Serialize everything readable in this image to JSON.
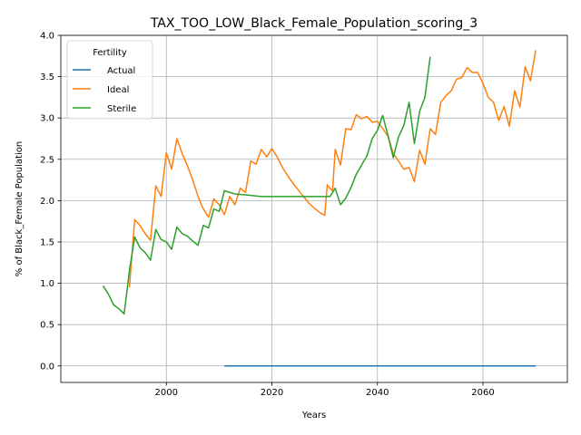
{
  "chart_data": {
    "type": "line",
    "title": "TAX_TOO_LOW_Black_Female_Population_scoring_3",
    "xlabel": "Years",
    "ylabel": "% of Black_Female Population",
    "xlim": [
      1980,
      2076
    ],
    "ylim": [
      -0.2,
      4.0
    ],
    "xticks": [
      2000,
      2020,
      2040,
      2060
    ],
    "yticks": [
      0.0,
      0.5,
      1.0,
      1.5,
      2.0,
      2.5,
      3.0,
      3.5,
      4.0
    ],
    "grid": true,
    "legend": {
      "title": "Fertility",
      "placement": "upper-left"
    },
    "series": [
      {
        "name": "Actual",
        "color": "#1f77b4",
        "points": [
          [
            2011,
            0.0
          ],
          [
            2070,
            0.0
          ]
        ]
      },
      {
        "name": "Ideal",
        "color": "#ff7f0e",
        "points": [
          [
            1993,
            0.95
          ],
          [
            1994,
            1.77
          ],
          [
            1995,
            1.7
          ],
          [
            1996,
            1.6
          ],
          [
            1997,
            1.52
          ],
          [
            1998,
            2.18
          ],
          [
            1999,
            2.05
          ],
          [
            2000,
            2.58
          ],
          [
            2001,
            2.38
          ],
          [
            2002,
            2.75
          ],
          [
            2003,
            2.57
          ],
          [
            2004,
            2.42
          ],
          [
            2005,
            2.25
          ],
          [
            2006,
            2.05
          ],
          [
            2007,
            1.9
          ],
          [
            2008,
            1.8
          ],
          [
            2009,
            2.02
          ],
          [
            2010,
            1.95
          ],
          [
            2011,
            1.83
          ],
          [
            2012,
            2.05
          ],
          [
            2013,
            1.95
          ],
          [
            2014,
            2.15
          ],
          [
            2015,
            2.1
          ],
          [
            2016,
            2.48
          ],
          [
            2017,
            2.44
          ],
          [
            2018,
            2.62
          ],
          [
            2019,
            2.53
          ],
          [
            2020,
            2.63
          ],
          [
            2021,
            2.53
          ],
          [
            2022,
            2.4
          ],
          [
            2023,
            2.3
          ],
          [
            2024,
            2.21
          ],
          [
            2025,
            2.13
          ],
          [
            2026,
            2.05
          ],
          [
            2027,
            1.97
          ],
          [
            2028,
            1.91
          ],
          [
            2029,
            1.86
          ],
          [
            2030,
            1.82
          ],
          [
            2030.5,
            2.19
          ],
          [
            2031,
            2.15
          ],
          [
            2031.5,
            2.12
          ],
          [
            2032,
            2.62
          ],
          [
            2033,
            2.43
          ],
          [
            2034,
            2.87
          ],
          [
            2035,
            2.86
          ],
          [
            2036,
            3.04
          ],
          [
            2037,
            2.99
          ],
          [
            2038,
            3.02
          ],
          [
            2039,
            2.95
          ],
          [
            2040,
            2.96
          ],
          [
            2041,
            2.87
          ],
          [
            2042,
            2.78
          ],
          [
            2043,
            2.57
          ],
          [
            2044,
            2.48
          ],
          [
            2045,
            2.38
          ],
          [
            2046,
            2.4
          ],
          [
            2047,
            2.23
          ],
          [
            2048,
            2.61
          ],
          [
            2049,
            2.44
          ],
          [
            2050,
            2.87
          ],
          [
            2051,
            2.8
          ],
          [
            2052,
            3.19
          ],
          [
            2053,
            3.27
          ],
          [
            2054,
            3.33
          ],
          [
            2055,
            3.47
          ],
          [
            2056,
            3.49
          ],
          [
            2057,
            3.61
          ],
          [
            2058,
            3.55
          ],
          [
            2059,
            3.55
          ],
          [
            2060,
            3.42
          ],
          [
            2061,
            3.25
          ],
          [
            2062,
            3.19
          ],
          [
            2063,
            2.97
          ],
          [
            2064,
            3.14
          ],
          [
            2065,
            2.9
          ],
          [
            2066,
            3.33
          ],
          [
            2067,
            3.13
          ],
          [
            2068,
            3.62
          ],
          [
            2069,
            3.45
          ],
          [
            2070,
            3.82
          ]
        ]
      },
      {
        "name": "Sterile",
        "color": "#2ca02c",
        "points": [
          [
            1988,
            0.97
          ],
          [
            1989,
            0.87
          ],
          [
            1990,
            0.74
          ],
          [
            1991,
            0.69
          ],
          [
            1992,
            0.63
          ],
          [
            1993,
            1.15
          ],
          [
            1994,
            1.56
          ],
          [
            1995,
            1.43
          ],
          [
            1996,
            1.37
          ],
          [
            1997,
            1.28
          ],
          [
            1998,
            1.65
          ],
          [
            1999,
            1.53
          ],
          [
            2000,
            1.5
          ],
          [
            2001,
            1.41
          ],
          [
            2002,
            1.68
          ],
          [
            2003,
            1.6
          ],
          [
            2004,
            1.57
          ],
          [
            2005,
            1.51
          ],
          [
            2006,
            1.46
          ],
          [
            2007,
            1.7
          ],
          [
            2008,
            1.67
          ],
          [
            2009,
            1.9
          ],
          [
            2010,
            1.87
          ],
          [
            2011,
            2.12
          ],
          [
            2012,
            2.1
          ],
          [
            2013,
            2.08
          ],
          [
            2015,
            2.07
          ],
          [
            2018,
            2.05
          ],
          [
            2031,
            2.05
          ],
          [
            2032,
            2.15
          ],
          [
            2033,
            1.95
          ],
          [
            2034,
            2.03
          ],
          [
            2035,
            2.16
          ],
          [
            2036,
            2.32
          ],
          [
            2037,
            2.43
          ],
          [
            2038,
            2.54
          ],
          [
            2039,
            2.75
          ],
          [
            2040,
            2.85
          ],
          [
            2041,
            3.03
          ],
          [
            2042,
            2.79
          ],
          [
            2043,
            2.52
          ],
          [
            2044,
            2.77
          ],
          [
            2045,
            2.91
          ],
          [
            2046,
            3.19
          ],
          [
            2047,
            2.69
          ],
          [
            2048,
            3.08
          ],
          [
            2049,
            3.25
          ],
          [
            2050,
            3.74
          ]
        ]
      }
    ]
  }
}
